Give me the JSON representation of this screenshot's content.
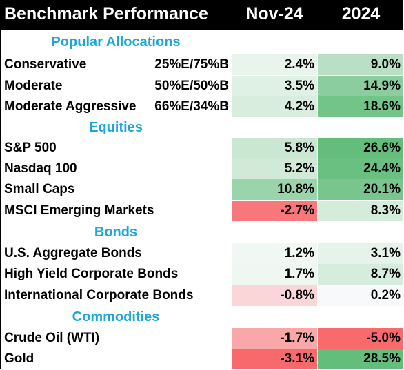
{
  "header": {
    "title": "Benchmark Performance",
    "col1": "Nov-24",
    "col2": "2024"
  },
  "colors": {
    "header_bg": "#000000",
    "section_text": "#1ea6d9",
    "green_strong": "#63be7b",
    "red_strong": "#f8696b"
  },
  "sections": [
    {
      "title": "Popular Allocations",
      "rows": [
        {
          "label": "Conservative",
          "allocation": "25%E/75%B",
          "nov": "2.4%",
          "ytd": "9.0%",
          "nov_bg": "#e9f5ec",
          "ytd_bg": "#b9e0c4"
        },
        {
          "label": "Moderate",
          "allocation": "50%E/50%B",
          "nov": "3.5%",
          "ytd": "14.9%",
          "nov_bg": "#dff0e4",
          "ytd_bg": "#8ccd9f"
        },
        {
          "label": "Moderate Aggressive",
          "allocation": "66%E/34%B",
          "nov": "4.2%",
          "ytd": "18.6%",
          "nov_bg": "#d8eddd",
          "ytd_bg": "#72c488"
        }
      ]
    },
    {
      "title": "Equities",
      "rows": [
        {
          "label": "S&P 500",
          "allocation": "",
          "nov": "5.8%",
          "ytd": "26.6%",
          "nov_bg": "#cae7d2",
          "ytd_bg": "#63be7b"
        },
        {
          "label": "Nasdaq 100",
          "allocation": "",
          "nov": "5.2%",
          "ytd": "24.4%",
          "nov_bg": "#d1eaD8",
          "ytd_bg": "#69c080"
        },
        {
          "label": "Small Caps",
          "allocation": "",
          "nov": "10.8%",
          "ytd": "20.1%",
          "nov_bg": "#9ad4ab",
          "ytd_bg": "#78c68d"
        },
        {
          "label": "MSCI Emerging Markets",
          "allocation": "",
          "nov": "-2.7%",
          "ytd": "8.3%",
          "nov_bg": "#f8777a",
          "ytd_bg": "#d5ecdb"
        }
      ]
    },
    {
      "title": "Bonds",
      "rows": [
        {
          "label": "U.S. Aggregate Bonds",
          "allocation": "",
          "nov": "1.2%",
          "ytd": "3.1%",
          "nov_bg": "#f1f8f3",
          "ytd_bg": "#e6f3ea"
        },
        {
          "label": "High Yield Corporate Bonds",
          "allocation": "",
          "nov": "1.7%",
          "ytd": "8.7%",
          "nov_bg": "#eef7f1",
          "ytd_bg": "#d6ecdc"
        },
        {
          "label": "International Corporate Bonds",
          "allocation": "",
          "nov": "-0.8%",
          "ytd": "0.2%",
          "nov_bg": "#fbd6d8",
          "ytd_bg": "#f8f9fb"
        }
      ]
    },
    {
      "title": "Commodities",
      "rows": [
        {
          "label": "Crude Oil (WTI)",
          "allocation": "",
          "nov": "-1.7%",
          "ytd": "-5.0%",
          "nov_bg": "#f9a7a9",
          "ytd_bg": "#f86a6c"
        },
        {
          "label": "Gold",
          "allocation": "",
          "nov": "-3.1%",
          "ytd": "28.5%",
          "nov_bg": "#f8696b",
          "ytd_bg": "#63be7b"
        }
      ]
    }
  ]
}
